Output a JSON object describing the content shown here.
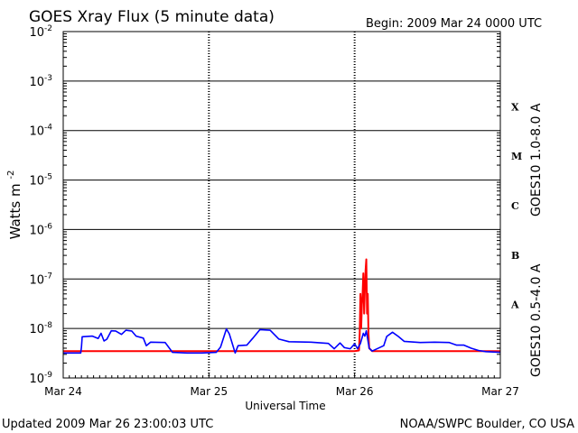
{
  "header": {
    "title": "GOES Xray Flux (5 minute data)",
    "begin": "Begin:  2009 Mar 24 0000 UTC"
  },
  "footer": {
    "updated": "Updated 2009 Mar 26 23:00:03 UTC",
    "credit": "NOAA/SWPC Boulder, CO USA"
  },
  "colors": {
    "long_channel": "#ff0000",
    "short_channel": "#0000ff",
    "grid": "#000000"
  },
  "chart_data": {
    "type": "line",
    "title": "GOES Xray Flux (5 minute data)",
    "xlabel": "Universal Time",
    "ylabel": "Watts m",
    "ylabel_sup": "-2",
    "yscale": "log",
    "ylim": [
      1e-09,
      0.01
    ],
    "xlim_days": [
      0,
      3
    ],
    "x_ticks": [
      "Mar 24",
      "Mar 25",
      "Mar 26",
      "Mar 27"
    ],
    "y_ticks": [
      {
        "base": "10",
        "exp": "-2",
        "value": 0.01
      },
      {
        "base": "10",
        "exp": "-3",
        "value": 0.001
      },
      {
        "base": "10",
        "exp": "-4",
        "value": 0.0001
      },
      {
        "base": "10",
        "exp": "-5",
        "value": 1e-05
      },
      {
        "base": "10",
        "exp": "-6",
        "value": 1e-06
      },
      {
        "base": "10",
        "exp": "-7",
        "value": 1e-07
      },
      {
        "base": "10",
        "exp": "-8",
        "value": 1e-08
      },
      {
        "base": "10",
        "exp": "-9",
        "value": 1e-09
      }
    ],
    "flare_classes": [
      {
        "label": "X",
        "low": 0.0001,
        "high": 0.001
      },
      {
        "label": "M",
        "low": 1e-05,
        "high": 0.0001
      },
      {
        "label": "C",
        "low": 1e-06,
        "high": 1e-05
      },
      {
        "label": "B",
        "low": 1e-07,
        "high": 1e-06
      },
      {
        "label": "A",
        "low": 1e-08,
        "high": 1e-07
      }
    ],
    "grid": true,
    "series": [
      {
        "name": "GOES10 1.0-8.0 A",
        "color": "#ff0000",
        "points": [
          [
            0.0,
            3.5e-09
          ],
          [
            0.1,
            3.5e-09
          ],
          [
            0.2,
            3.5e-09
          ],
          [
            0.3,
            3.5e-09
          ],
          [
            0.5,
            3.5e-09
          ],
          [
            0.7,
            3.5e-09
          ],
          [
            0.9,
            3.5e-09
          ],
          [
            1.1,
            3.5e-09
          ],
          [
            1.3,
            3.5e-09
          ],
          [
            1.5,
            3.5e-09
          ],
          [
            1.7,
            3.5e-09
          ],
          [
            1.9,
            3.5e-09
          ],
          [
            2.0,
            3.5e-09
          ],
          [
            2.03,
            3.6e-09
          ],
          [
            2.035,
            8e-09
          ],
          [
            2.04,
            5e-08
          ],
          [
            2.045,
            1e-08
          ],
          [
            2.05,
            3e-08
          ],
          [
            2.055,
            5e-08
          ],
          [
            2.06,
            1.3e-07
          ],
          [
            2.065,
            2e-08
          ],
          [
            2.07,
            6e-08
          ],
          [
            2.075,
            1.5e-07
          ],
          [
            2.08,
            2.5e-07
          ],
          [
            2.085,
            2e-08
          ],
          [
            2.09,
            5e-08
          ],
          [
            2.095,
            8e-09
          ],
          [
            2.1,
            4e-09
          ],
          [
            2.12,
            3.5e-09
          ],
          [
            2.3,
            3.5e-09
          ],
          [
            2.5,
            3.5e-09
          ],
          [
            2.7,
            3.5e-09
          ],
          [
            2.9,
            3.5e-09
          ],
          [
            3.0,
            3.5e-09
          ]
        ]
      },
      {
        "name": "GOES10 0.5-4.0 A",
        "color": "#0000ff",
        "points": [
          [
            0.0,
            3.2e-09
          ],
          [
            0.12,
            3.2e-09
          ],
          [
            0.125,
            4.2e-09
          ],
          [
            0.13,
            6.8e-09
          ],
          [
            0.2,
            7e-09
          ],
          [
            0.24,
            6.3e-09
          ],
          [
            0.26,
            8e-09
          ],
          [
            0.28,
            5.6e-09
          ],
          [
            0.3,
            6.1e-09
          ],
          [
            0.33,
            9e-09
          ],
          [
            0.36,
            8.9e-09
          ],
          [
            0.4,
            7.6e-09
          ],
          [
            0.43,
            9.2e-09
          ],
          [
            0.47,
            8.9e-09
          ],
          [
            0.5,
            7e-09
          ],
          [
            0.55,
            6.4e-09
          ],
          [
            0.57,
            4.5e-09
          ],
          [
            0.6,
            5.3e-09
          ],
          [
            0.7,
            5.2e-09
          ],
          [
            0.75,
            3.3e-09
          ],
          [
            0.85,
            3.2e-09
          ],
          [
            0.95,
            3.2e-09
          ],
          [
            1.05,
            3.3e-09
          ],
          [
            1.08,
            4.2e-09
          ],
          [
            1.12,
            9.8e-09
          ],
          [
            1.14,
            7.8e-09
          ],
          [
            1.18,
            3.2e-09
          ],
          [
            1.2,
            4.5e-09
          ],
          [
            1.26,
            4.6e-09
          ],
          [
            1.3,
            6.3e-09
          ],
          [
            1.35,
            9.5e-09
          ],
          [
            1.42,
            9.2e-09
          ],
          [
            1.48,
            6.1e-09
          ],
          [
            1.55,
            5.4e-09
          ],
          [
            1.7,
            5.3e-09
          ],
          [
            1.82,
            5e-09
          ],
          [
            1.86,
            3.9e-09
          ],
          [
            1.9,
            5.1e-09
          ],
          [
            1.93,
            4.1e-09
          ],
          [
            1.97,
            3.9e-09
          ],
          [
            2.0,
            4.9e-09
          ],
          [
            2.02,
            3.9e-09
          ],
          [
            2.04,
            5e-09
          ],
          [
            2.06,
            8e-09
          ],
          [
            2.07,
            7e-09
          ],
          [
            2.08,
            9e-09
          ],
          [
            2.09,
            6e-09
          ],
          [
            2.1,
            4e-09
          ],
          [
            2.12,
            3.5e-09
          ],
          [
            2.2,
            4.5e-09
          ],
          [
            2.22,
            6.9e-09
          ],
          [
            2.26,
            8.4e-09
          ],
          [
            2.3,
            6.9e-09
          ],
          [
            2.34,
            5.5e-09
          ],
          [
            2.45,
            5.2e-09
          ],
          [
            2.55,
            5.3e-09
          ],
          [
            2.65,
            5.2e-09
          ],
          [
            2.7,
            4.6e-09
          ],
          [
            2.75,
            4.6e-09
          ],
          [
            2.8,
            4e-09
          ],
          [
            2.85,
            3.6e-09
          ],
          [
            2.9,
            3.4e-09
          ],
          [
            3.0,
            3.3e-09
          ]
        ]
      }
    ]
  }
}
